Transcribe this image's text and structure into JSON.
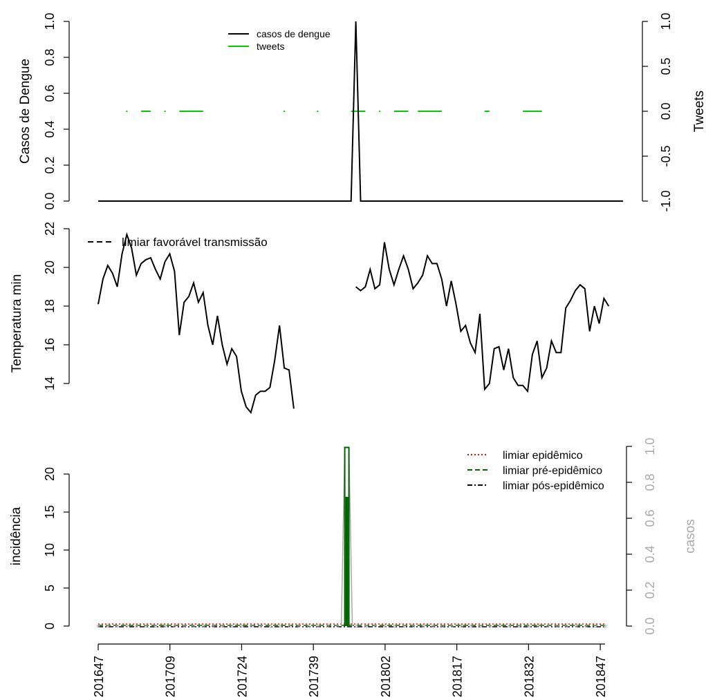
{
  "chart_data": [
    {
      "type": "line",
      "ylabel": "Casos de Dengue",
      "ylabel_right": "Tweets",
      "ylim": [
        0,
        1
      ],
      "yticks": [
        "0.0",
        "0.2",
        "0.4",
        "0.6",
        "0.8",
        "1.0"
      ],
      "yticks_right": [
        "-1.0",
        "-0.5",
        "0.0",
        "0.5",
        "1.0"
      ],
      "ylim_right": [
        -1,
        1
      ],
      "n_weeks": 111,
      "legend": {
        "position": "top-center",
        "entries": [
          "casos de dengue",
          "tweets"
        ]
      },
      "series": [
        {
          "name": "casos de dengue",
          "color": "#000000",
          "values": [
            0,
            0,
            0,
            0,
            0,
            0,
            0,
            0,
            0,
            0,
            0,
            0,
            0,
            0,
            0,
            0,
            0,
            0,
            0,
            0,
            0,
            0,
            0,
            0,
            0,
            0,
            0,
            0,
            0,
            0,
            0,
            0,
            0,
            0,
            0,
            0,
            0,
            0,
            0,
            0,
            0,
            0,
            0,
            0,
            0,
            0,
            0,
            0,
            0,
            0,
            0,
            0,
            0,
            0,
            1,
            0,
            0,
            0,
            0,
            0,
            0,
            0,
            0,
            0,
            0,
            0,
            0,
            0,
            0,
            0,
            0,
            0,
            0,
            0,
            0,
            0,
            0,
            0,
            0,
            0,
            0,
            0,
            0,
            0,
            0,
            0,
            0,
            0,
            0,
            0,
            0,
            0,
            0,
            0,
            0,
            0,
            0,
            0,
            0,
            0,
            0,
            0,
            0,
            0,
            0,
            0,
            0,
            0,
            0,
            0,
            0
          ]
        },
        {
          "name": "tweets",
          "color": "#00cc00",
          "axis": "right",
          "value": 0,
          "segments": [
            [
              6,
              6
            ],
            [
              9,
              11
            ],
            [
              14,
              14
            ],
            [
              17,
              22
            ],
            [
              39,
              39
            ],
            [
              46,
              46
            ],
            [
              53,
              56
            ],
            [
              59,
              59
            ],
            [
              62,
              65
            ],
            [
              67,
              72
            ],
            [
              81,
              82
            ],
            [
              89,
              93
            ]
          ]
        }
      ]
    },
    {
      "type": "line",
      "ylabel": "Temperatura min",
      "ylim": [
        12.5,
        22
      ],
      "yticks": [
        "14",
        "16",
        "18",
        "20",
        "22"
      ],
      "legend": {
        "position": "top-left",
        "entries": [
          "limiar favorável transmissão"
        ]
      },
      "series": [
        {
          "name": "temperatura min",
          "color": "#000000",
          "values": [
            18.1,
            19.4,
            20.1,
            19.7,
            19.0,
            20.7,
            21.7,
            21.0,
            19.6,
            20.2,
            20.4,
            20.5,
            19.9,
            19.4,
            20.3,
            20.7,
            19.8,
            16.5,
            18.2,
            18.5,
            19.2,
            18.2,
            18.7,
            17.0,
            16.0,
            17.5,
            16.0,
            15.0,
            15.8,
            15.4,
            13.6,
            12.8,
            12.5,
            13.4,
            13.6,
            13.6,
            13.8,
            15.2,
            17.0,
            14.8,
            14.7,
            12.7,
            null,
            null,
            null,
            null,
            null,
            null,
            null,
            null,
            null,
            null,
            null,
            null,
            19.0,
            18.8,
            19.0,
            19.9,
            18.9,
            19.1,
            21.3,
            19.9,
            19.1,
            19.9,
            20.6,
            19.9,
            18.9,
            19.2,
            19.6,
            20.6,
            20.2,
            20.2,
            19.4,
            18.0,
            19.3,
            18.1,
            16.7,
            17.0,
            16.1,
            15.6,
            17.6,
            13.7,
            14.0,
            15.8,
            15.9,
            14.7,
            15.8,
            14.3,
            13.9,
            13.9,
            13.6,
            15.5,
            16.2,
            14.3,
            14.8,
            16.2,
            15.6,
            15.6,
            17.9,
            18.3,
            18.8,
            19.1,
            18.9,
            16.7,
            18.0,
            17.1,
            18.4,
            18.0,
            null,
            null,
            null
          ]
        }
      ]
    },
    {
      "type": "line",
      "ylabel": "incidência",
      "ylabel_right": "casos",
      "ylim": [
        0,
        22
      ],
      "ylim_right": [
        0,
        1
      ],
      "yticks": [
        "0",
        "5",
        "10",
        "15",
        "20"
      ],
      "yticks_right": [
        "0.0",
        "0.2",
        "0.4",
        "0.6",
        "0.8",
        "1.0"
      ],
      "x_tick_labels": [
        "201647",
        "201709",
        "201724",
        "201739",
        "201802",
        "201817",
        "201832",
        "201847"
      ],
      "x_tick_index": [
        0,
        15,
        30,
        45,
        60,
        75,
        90,
        105
      ],
      "peak_index": 52,
      "peak_incidence": 23.5,
      "legend": {
        "position": "top-right",
        "entries": [
          "limiar epidêmico",
          "limiar pré-epidêmico",
          "limiar pós-epidêmico"
        ]
      },
      "threshold_colors": [
        "#ff0000",
        "#006400",
        "#000000"
      ],
      "incidence_color": "#006400",
      "cases_color": "#a9a9a9"
    }
  ]
}
